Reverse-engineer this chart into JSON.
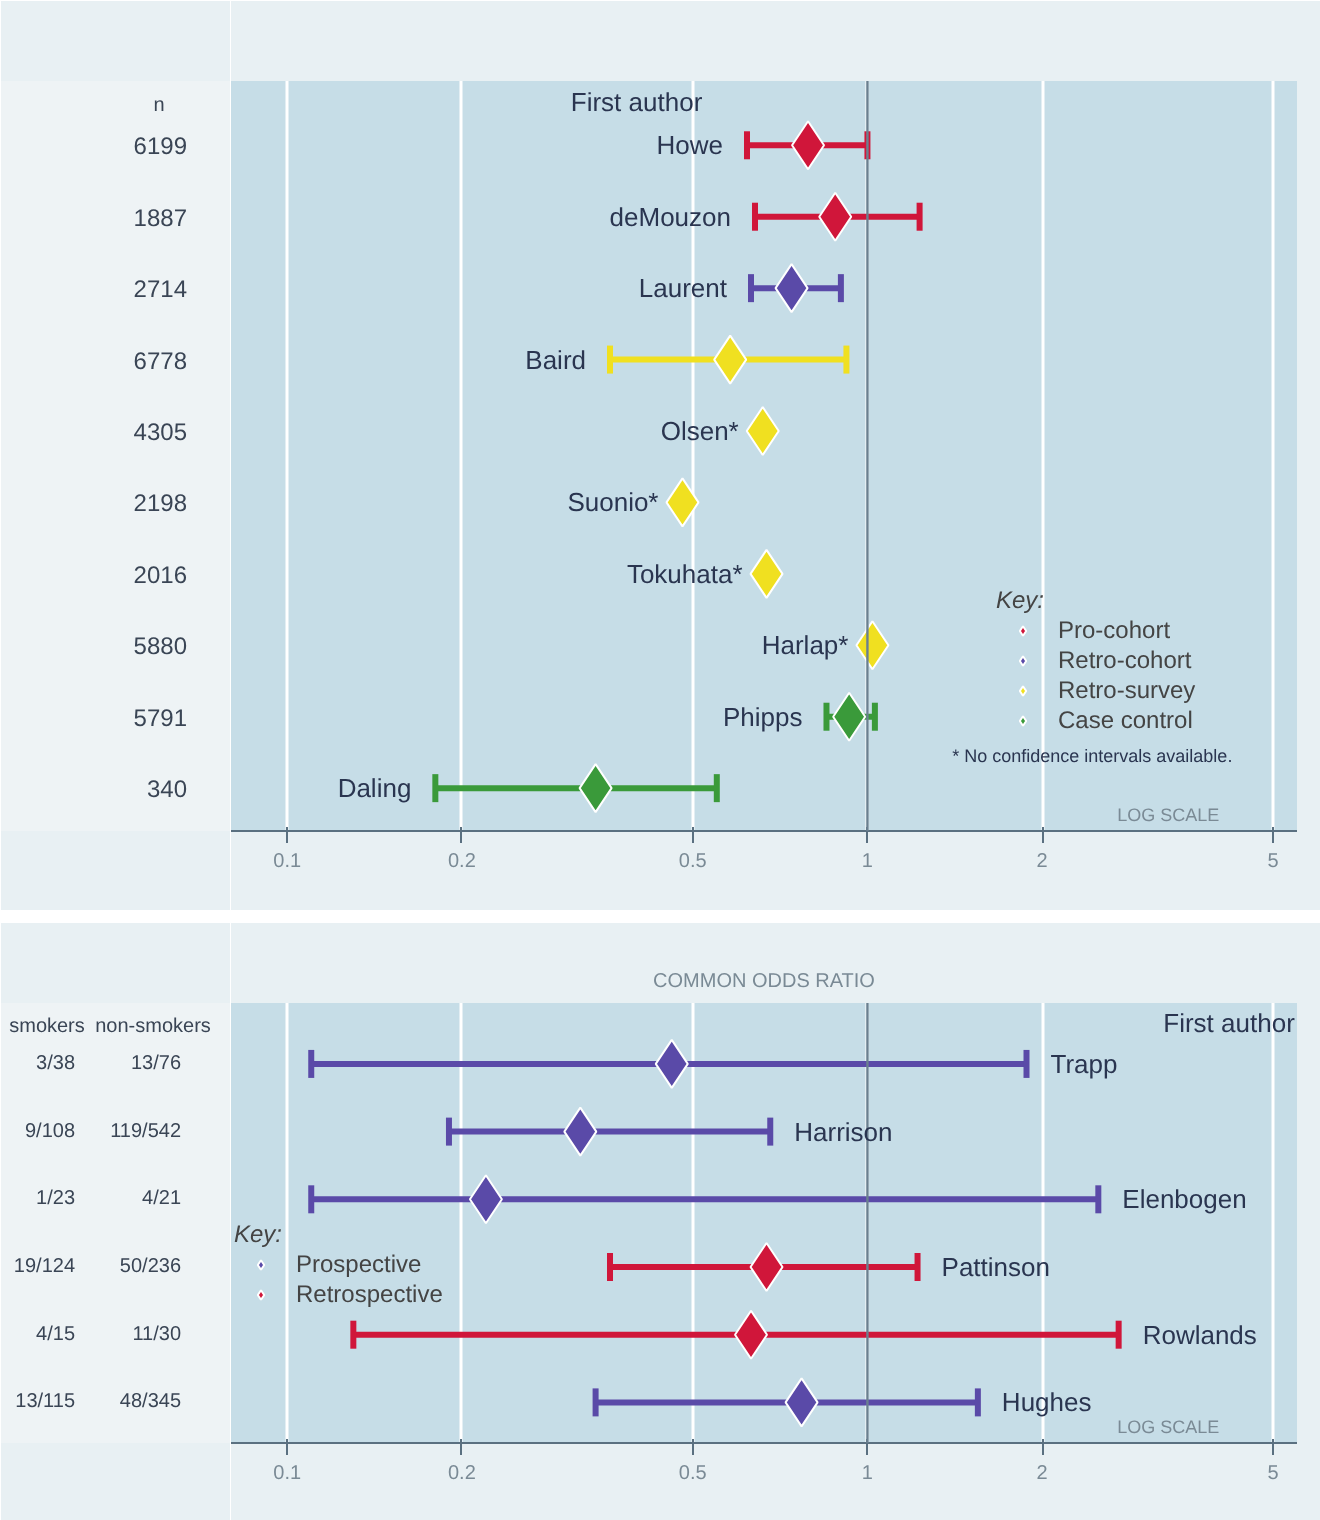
{
  "chart_data": [
    {
      "type": "scatter",
      "orientation": "horizontal",
      "marker": "diamond",
      "log": "x",
      "grid": "x",
      "legend": "bottom right",
      "legend_title": "Key:",
      "categories": [
        "Howe",
        "deMouzon",
        "Laurent",
        "Baird",
        "Olsen*",
        "Suonio*",
        "Tokuhata*",
        "Harlap*",
        "Phipps",
        "Daling"
      ],
      "series": [
        {
          "name": "Pro-cohort",
          "color": "#d0163a",
          "values": [
            0.79,
            0.88,
            null,
            null,
            null,
            null,
            null,
            null,
            null,
            null
          ],
          "errors": [
            [
              0.62,
              1.0
            ],
            [
              0.64,
              1.23
            ],
            null,
            null,
            null,
            null,
            null,
            null,
            null,
            null
          ]
        },
        {
          "name": "Retro-cohort",
          "color": "#5a4aa8",
          "values": [
            null,
            null,
            0.74,
            null,
            null,
            null,
            null,
            null,
            null,
            null
          ],
          "errors": [
            null,
            null,
            [
              0.63,
              0.9
            ],
            null,
            null,
            null,
            null,
            null,
            null,
            null
          ]
        },
        {
          "name": "Retro-survey",
          "color": "#f0e020",
          "values": [
            null,
            null,
            null,
            0.58,
            0.66,
            0.48,
            0.67,
            1.02,
            null,
            null
          ],
          "errors": [
            null,
            null,
            null,
            [
              0.36,
              0.92
            ],
            null,
            null,
            null,
            null,
            null,
            null
          ]
        },
        {
          "name": "Case control",
          "color": "#3a9a3a",
          "values": [
            null,
            null,
            null,
            null,
            null,
            null,
            null,
            null,
            0.93,
            0.34
          ],
          "errors": [
            null,
            null,
            null,
            null,
            null,
            null,
            null,
            null,
            [
              0.85,
              1.03
            ],
            [
              0.18,
              0.55
            ]
          ]
        }
      ],
      "xlim": [
        0.08,
        5.5
      ],
      "xticks": [
        {
          "value": 0.1,
          "label": "0.1"
        },
        {
          "value": 0.2,
          "label": "0.2"
        },
        {
          "value": 0.5,
          "label": "0.5"
        },
        1,
        2,
        5
      ],
      "ref_lines": [
        {
          "axis": "x",
          "value": 1,
          "color": "#6a8090"
        }
      ],
      "annotations": [
        "n",
        "First author",
        "* No confidence intervals available.",
        "LOG SCALE",
        "6199",
        "1887",
        "2714",
        "6778",
        "4305",
        "2198",
        "2016",
        "5880",
        "5791",
        "340"
      ]
    },
    {
      "type": "scatter",
      "orientation": "horizontal",
      "marker": "diamond",
      "log": "x",
      "grid": "x",
      "legend": "left",
      "legend_title": "Key:",
      "xlabel": "COMMON ODDS RATIO",
      "categories": [
        "Trapp",
        "Harrison",
        "Elenbogen",
        "Pattinson",
        "Rowlands",
        "Hughes"
      ],
      "series": [
        {
          "name": "Prospective",
          "color": "#5a4aa8",
          "values": [
            0.46,
            0.32,
            0.22,
            null,
            null,
            0.77
          ],
          "errors": [
            [
              0.11,
              1.88
            ],
            [
              0.19,
              0.68
            ],
            [
              0.11,
              2.5
            ],
            null,
            null,
            [
              0.34,
              1.55
            ]
          ]
        },
        {
          "name": "Retrospective",
          "color": "#d0163a",
          "values": [
            null,
            null,
            null,
            0.67,
            0.63,
            null
          ],
          "errors": [
            null,
            null,
            null,
            [
              0.36,
              1.22
            ],
            [
              0.13,
              2.71
            ],
            null
          ]
        }
      ],
      "xlim": [
        0.08,
        5.5
      ],
      "xticks": [
        {
          "value": 0.1,
          "label": "0.1"
        },
        {
          "value": 0.2,
          "label": "0.2"
        },
        {
          "value": 0.5,
          "label": "0.5"
        },
        1,
        2,
        5
      ],
      "ref_lines": [
        {
          "axis": "x",
          "value": 1,
          "color": "#6a8090"
        }
      ],
      "annotations": [
        "smokers",
        "non-smokers",
        "First author",
        "LOG SCALE",
        "3/38",
        "13/76",
        "9/108",
        "119/542",
        "1/23",
        "4/21",
        "19/124",
        "50/236",
        "4/15",
        "11/30",
        "13/115",
        "48/345"
      ]
    }
  ]
}
